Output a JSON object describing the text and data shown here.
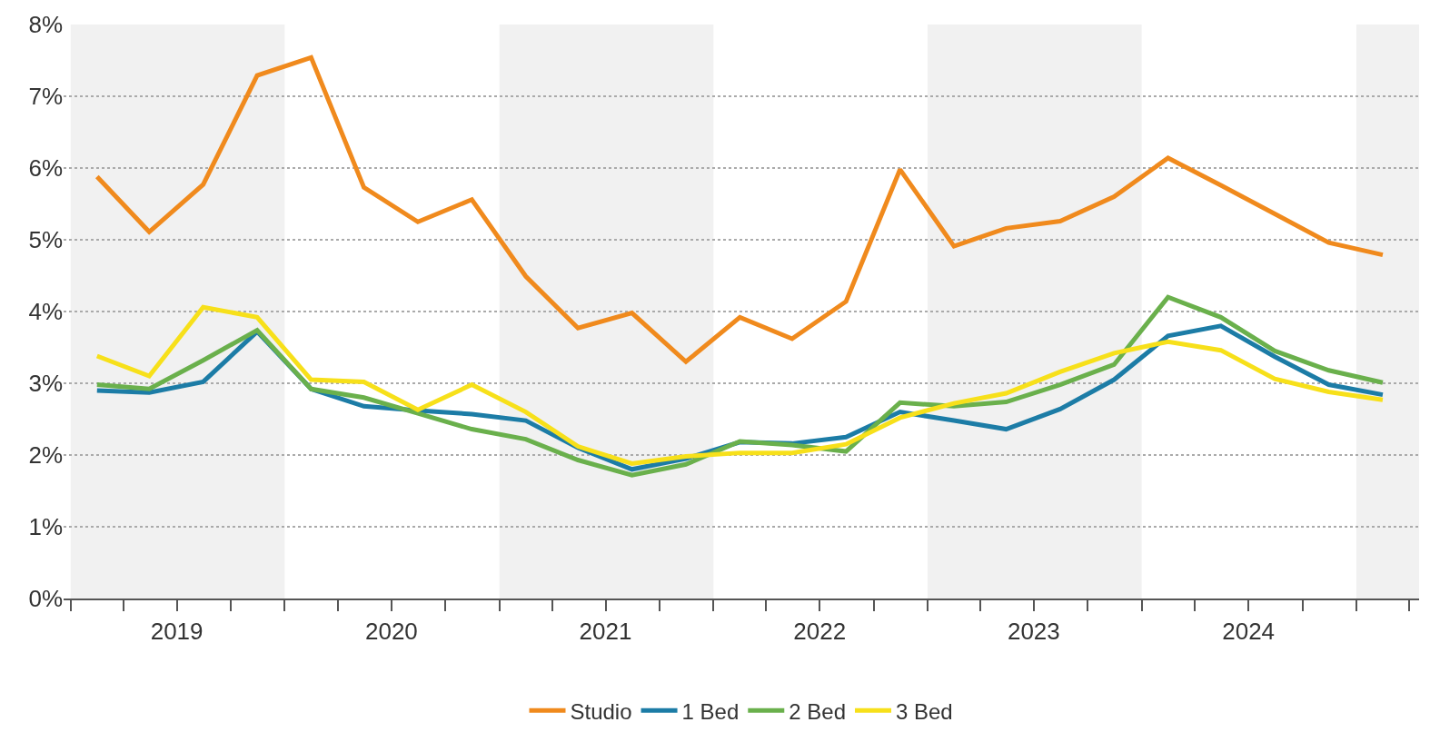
{
  "chart_data": {
    "type": "line",
    "x": [
      "2019-02-15",
      "2019-05-15",
      "2019-08-15",
      "2019-11-15",
      "2020-02-15",
      "2020-05-15",
      "2020-08-15",
      "2020-11-15",
      "2021-02-15",
      "2021-05-15",
      "2021-08-15",
      "2021-11-15",
      "2022-02-15",
      "2022-05-15",
      "2022-08-15",
      "2022-11-15",
      "2023-02-15",
      "2023-05-15",
      "2023-08-15",
      "2023-11-15",
      "2024-02-15",
      "2024-05-15",
      "2024-08-15",
      "2024-11-15",
      "2025-02-15"
    ],
    "series": [
      {
        "name": "Studio",
        "color": "#f08a1d",
        "values": [
          5.88,
          5.11,
          5.77,
          7.29,
          7.54,
          5.73,
          5.25,
          5.56,
          4.49,
          3.77,
          3.98,
          3.3,
          3.92,
          3.62,
          4.14,
          5.98,
          4.91,
          5.16,
          5.26,
          5.6,
          6.14,
          5.76,
          5.36,
          4.96,
          4.79
        ]
      },
      {
        "name": "1 Bed",
        "color": "#1c7ca6",
        "values": [
          2.9,
          2.87,
          3.02,
          3.72,
          2.92,
          2.68,
          2.62,
          2.57,
          2.48,
          2.1,
          1.8,
          1.95,
          2.18,
          2.16,
          2.25,
          2.6,
          2.48,
          2.36,
          2.64,
          3.05,
          3.66,
          3.8,
          3.37,
          2.98,
          2.84
        ]
      },
      {
        "name": "2 Bed",
        "color": "#6ab04c",
        "values": [
          2.98,
          2.92,
          3.32,
          3.74,
          2.92,
          2.8,
          2.58,
          2.36,
          2.22,
          1.93,
          1.72,
          1.87,
          2.19,
          2.14,
          2.05,
          2.73,
          2.68,
          2.74,
          2.98,
          3.26,
          4.2,
          3.92,
          3.45,
          3.18,
          3.01
        ]
      },
      {
        "name": "3 Bed",
        "color": "#f7e01a",
        "values": [
          3.38,
          3.1,
          4.06,
          3.92,
          3.05,
          3.02,
          2.63,
          2.98,
          2.6,
          2.12,
          1.88,
          1.98,
          2.03,
          2.03,
          2.15,
          2.52,
          2.72,
          2.86,
          3.16,
          3.42,
          3.58,
          3.46,
          3.06,
          2.88,
          2.77
        ]
      }
    ],
    "xlim": [
      "2018-12-20",
      "2025-04-18"
    ],
    "xticks": [
      {
        "value": "2019-01-01",
        "label": null
      },
      {
        "value": "2019-04-01",
        "label": null
      },
      {
        "value": "2019-07-01",
        "label": "2019"
      },
      {
        "value": "2019-10-01",
        "label": null
      },
      {
        "value": "2020-01-01",
        "label": null
      },
      {
        "value": "2020-04-01",
        "label": null
      },
      {
        "value": "2020-07-01",
        "label": "2020"
      },
      {
        "value": "2020-10-01",
        "label": null
      },
      {
        "value": "2021-01-01",
        "label": null
      },
      {
        "value": "2021-04-01",
        "label": null
      },
      {
        "value": "2021-07-01",
        "label": "2021"
      },
      {
        "value": "2021-10-01",
        "label": null
      },
      {
        "value": "2022-01-01",
        "label": null
      },
      {
        "value": "2022-04-01",
        "label": null
      },
      {
        "value": "2022-07-01",
        "label": "2022"
      },
      {
        "value": "2022-10-01",
        "label": null
      },
      {
        "value": "2023-01-01",
        "label": null
      },
      {
        "value": "2023-04-01",
        "label": null
      },
      {
        "value": "2023-07-01",
        "label": "2023"
      },
      {
        "value": "2023-10-01",
        "label": null
      },
      {
        "value": "2024-01-01",
        "label": null
      },
      {
        "value": "2024-04-01",
        "label": null
      },
      {
        "value": "2024-07-01",
        "label": "2024"
      },
      {
        "value": "2024-10-01",
        "label": null
      },
      {
        "value": "2025-01-01",
        "label": null
      },
      {
        "value": "2025-04-01",
        "label": null
      }
    ],
    "ylim": [
      0,
      8
    ],
    "yticks": [
      {
        "value": 0,
        "label": "0%"
      },
      {
        "value": 1,
        "label": "1%"
      },
      {
        "value": 2,
        "label": "2%"
      },
      {
        "value": 3,
        "label": "3%"
      },
      {
        "value": 4,
        "label": "4%"
      },
      {
        "value": 5,
        "label": "5%"
      },
      {
        "value": 6,
        "label": "6%"
      },
      {
        "value": 7,
        "label": "7%"
      },
      {
        "value": 8,
        "label": "8%"
      }
    ],
    "bands": [
      {
        "axis": "x",
        "from": "2019-01-01",
        "to": "2020-01-01",
        "color": "#f1f1f1"
      },
      {
        "axis": "x",
        "from": "2021-01-01",
        "to": "2022-01-01",
        "color": "#f1f1f1"
      },
      {
        "axis": "x",
        "from": "2023-01-01",
        "to": "2024-01-01",
        "color": "#f1f1f1"
      },
      {
        "axis": "x",
        "from": "2025-01-01",
        "to": "2025-04-18",
        "color": "#f1f1f1"
      }
    ],
    "grid": "y",
    "legend": "bottom",
    "marker": "none",
    "line_style": "solid"
  }
}
